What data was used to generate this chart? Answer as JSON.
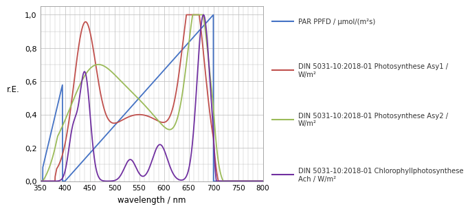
{
  "title": "",
  "xlabel": "wavelength / nm",
  "ylabel": "r.E.",
  "xlim": [
    350,
    800
  ],
  "ylim": [
    0.0,
    1.05
  ],
  "yticks": [
    0.0,
    0.2,
    0.4,
    0.6,
    0.8,
    1.0
  ],
  "ytick_labels": [
    "0,0",
    "0,2",
    "0,4",
    "0,6",
    "0,8",
    "1,0"
  ],
  "xticks": [
    350,
    400,
    450,
    500,
    550,
    600,
    650,
    700,
    750,
    800
  ],
  "legend_entries": [
    "PAR PPFD / μmol/(m²s)",
    "DIN 5031-10:2018-01 Photosynthese Asy1 /\nW/m²",
    "DIN 5031-10:2018-01 Photosynthese Asy2 /\nW/m²",
    "DIN 5031-10:2018-01 Chlorophyllphotosynthese\nAch / W/m²"
  ],
  "colors": {
    "par": "#4472C4",
    "asy1": "#C0504D",
    "asy2": "#9BBB59",
    "ach": "#7030A0"
  },
  "background_color": "#FFFFFF",
  "grid_color": "#BBBBBB"
}
